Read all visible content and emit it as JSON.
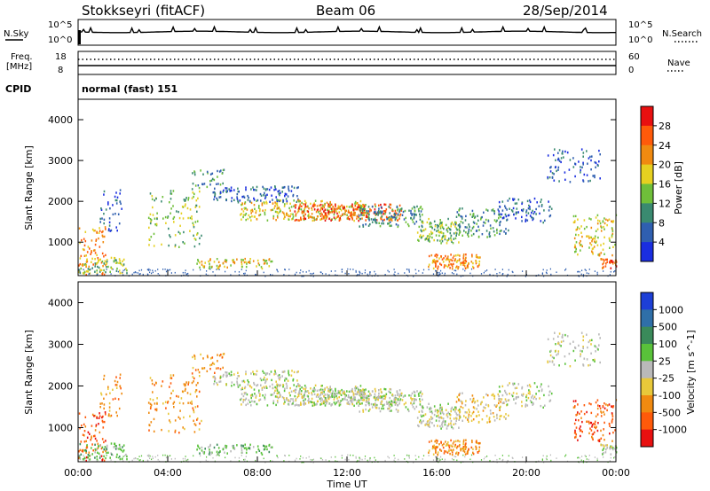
{
  "header": {
    "station": "Stokkseyri (fitACF)",
    "beam": "Beam 06",
    "date": "28/Sep/2014"
  },
  "panels": {
    "nsky_label": "N.Sky",
    "nsky_ticks": [
      "10^5",
      "10^0"
    ],
    "nsearch_label": "N.Search",
    "nsearch_ticks": [
      "10^5",
      "10^0"
    ],
    "freq_label_1": "Freq.",
    "freq_label_2": "[MHz]",
    "freq_ticks": [
      "18",
      "8"
    ],
    "nave_label": "Nave",
    "nave_ticks": [
      "60",
      "0"
    ],
    "cpid_label": "CPID",
    "cpid_value": "normal (fast) 151"
  },
  "colors": {
    "power_scale": [
      "#1a2ee0",
      "#2f5fb0",
      "#3a8a70",
      "#6fbf3a",
      "#e6d020",
      "#f08a10",
      "#ff5a0a",
      "#e81010"
    ],
    "velocity_scale": [
      "#1d3fd6",
      "#2f6fa8",
      "#3a8a5a",
      "#59c23a",
      "#b9b9b9",
      "#e8c83a",
      "#f08a10",
      "#ff5a0a",
      "#e81010"
    ]
  },
  "chart_data": [
    {
      "type": "line",
      "name": "N.Sky / N.Search",
      "x": [
        "00:00",
        "04:00",
        "08:00",
        "12:00",
        "16:00",
        "20:00",
        "00:00"
      ],
      "yscale": "log",
      "ylim": [
        1,
        100000
      ],
      "tick_labels": [
        "10^0",
        "10^5"
      ]
    },
    {
      "type": "line",
      "name": "Freq. / Nave",
      "ylim_left": [
        8,
        18
      ],
      "ylim_right": [
        0,
        60
      ]
    },
    {
      "type": "heatmap",
      "ylabel": "Slant Range [km]",
      "xlabel": "",
      "ylim": [
        180,
        4500
      ],
      "yticks": [
        1000,
        2000,
        3000,
        4000
      ],
      "xticks": [
        "00:00",
        "04:00",
        "08:00",
        "12:00",
        "16:00",
        "20:00",
        "00:00"
      ],
      "colorbar": {
        "label": "Power [dB]",
        "tick_labels": [
          "4",
          "8",
          "12",
          "16",
          "20",
          "24",
          "28"
        ]
      }
    },
    {
      "type": "heatmap",
      "ylabel": "Slant Range [km]",
      "xlabel": "Time UT",
      "ylim": [
        180,
        4500
      ],
      "yticks": [
        1000,
        2000,
        3000,
        4000
      ],
      "xticks": [
        "00:00",
        "04:00",
        "08:00",
        "12:00",
        "16:00",
        "20:00",
        "00:00"
      ],
      "colorbar": {
        "label": "Velocity [m s^-1]",
        "tick_labels": [
          "1000",
          "500",
          "100",
          "25",
          "-25",
          "-100",
          "-500",
          "-1000"
        ]
      }
    }
  ]
}
